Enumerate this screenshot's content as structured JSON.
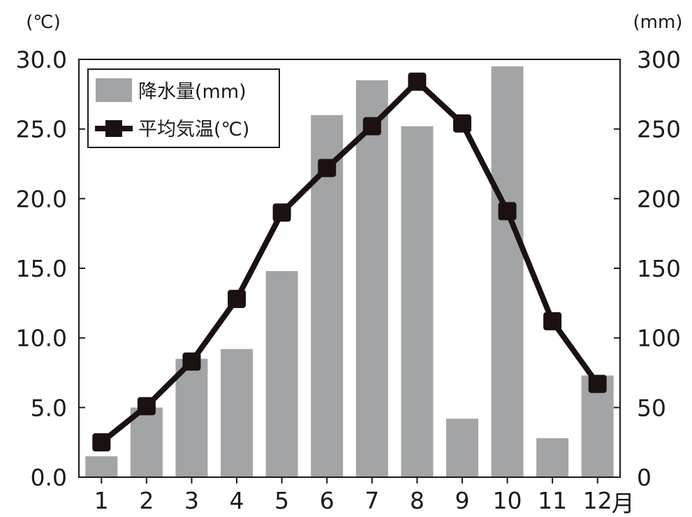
{
  "chart_data": {
    "type": "bar",
    "categories": [
      "1",
      "2",
      "3",
      "4",
      "5",
      "6",
      "7",
      "8",
      "9",
      "10",
      "11",
      "12"
    ],
    "x_unit_suffix": "月",
    "series": [
      {
        "name": "降水量(mm)",
        "type": "bar",
        "axis": "right",
        "color": "#a3a4a6",
        "values": [
          15,
          50,
          85,
          92,
          148,
          260,
          285,
          252,
          42,
          295,
          28,
          73
        ]
      },
      {
        "name": "平均気温(℃)",
        "type": "line",
        "axis": "left",
        "color": "#1a1110",
        "values": [
          2.5,
          5.1,
          8.3,
          12.8,
          19.0,
          22.2,
          25.2,
          28.4,
          25.4,
          19.1,
          11.2,
          6.7
        ]
      }
    ],
    "y_left": {
      "unit": "(℃)",
      "lim": [
        0,
        30
      ],
      "ticks": [
        "0.0",
        "5.0",
        "10.0",
        "15.0",
        "20.0",
        "25.0",
        "30.0"
      ]
    },
    "y_right": {
      "unit": "(mm)",
      "lim": [
        0,
        300
      ],
      "ticks": [
        "0",
        "50",
        "100",
        "150",
        "200",
        "250",
        "300"
      ]
    },
    "grid": false,
    "legend_position": "top-left"
  }
}
